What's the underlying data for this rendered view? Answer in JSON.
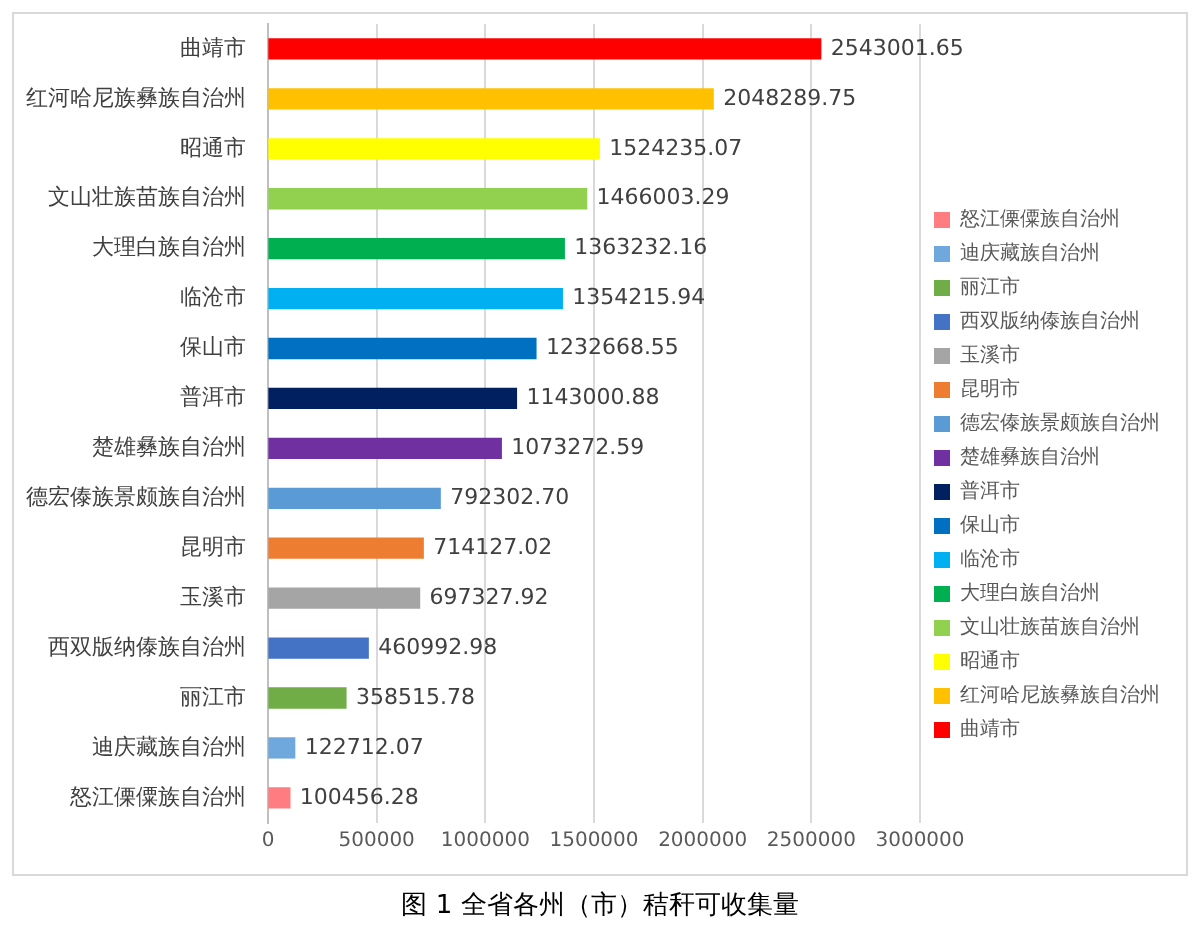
{
  "chart_data": {
    "type": "bar",
    "orientation": "horizontal",
    "stacked": true,
    "title": "图 1 全省各州（市）秸秆可收集量",
    "categories": [
      "曲靖市",
      "红河哈尼族彝族自治州",
      "昭通市",
      "文山壮族苗族自治州",
      "大理白族自治州",
      "临沧市",
      "保山市",
      "普洱市",
      "楚雄彝族自治州",
      "德宏傣族景颇族自治州",
      "昆明市",
      "玉溪市",
      "西双版纳傣族自治州",
      "丽江市",
      "迪庆藏族自治州",
      "怒江傈僳族自治州"
    ],
    "series": [
      {
        "name": "怒江傈僳族自治州",
        "color": "#ff7c80",
        "values": [
          null,
          null,
          null,
          null,
          null,
          null,
          null,
          null,
          null,
          null,
          null,
          null,
          null,
          null,
          null,
          100456.28
        ],
        "value_labels": [
          null,
          null,
          null,
          null,
          null,
          null,
          null,
          null,
          null,
          null,
          null,
          null,
          null,
          null,
          null,
          "100456.28"
        ]
      },
      {
        "name": "迪庆藏族自治州",
        "color": "#6fa8dc",
        "values": [
          null,
          null,
          null,
          null,
          null,
          null,
          null,
          null,
          null,
          null,
          null,
          null,
          null,
          null,
          122712.07,
          null
        ],
        "value_labels": [
          null,
          null,
          null,
          null,
          null,
          null,
          null,
          null,
          null,
          null,
          null,
          null,
          null,
          null,
          "122712.07",
          null
        ]
      },
      {
        "name": "丽江市",
        "color": "#70ad47",
        "values": [
          null,
          null,
          null,
          null,
          null,
          null,
          null,
          null,
          null,
          null,
          null,
          null,
          null,
          358515.78,
          null,
          null
        ],
        "value_labels": [
          null,
          null,
          null,
          null,
          null,
          null,
          null,
          null,
          null,
          null,
          null,
          null,
          null,
          "358515.78",
          null,
          null
        ]
      },
      {
        "name": "西双版纳傣族自治州",
        "color": "#4472c4",
        "values": [
          null,
          null,
          null,
          null,
          null,
          null,
          null,
          null,
          null,
          null,
          null,
          null,
          460992.98,
          null,
          null,
          null
        ],
        "value_labels": [
          null,
          null,
          null,
          null,
          null,
          null,
          null,
          null,
          null,
          null,
          null,
          null,
          "460992.98",
          null,
          null,
          null
        ]
      },
      {
        "name": "玉溪市",
        "color": "#a5a5a5",
        "values": [
          null,
          null,
          null,
          null,
          null,
          null,
          null,
          null,
          null,
          null,
          null,
          697327.92,
          null,
          null,
          null,
          null
        ],
        "value_labels": [
          null,
          null,
          null,
          null,
          null,
          null,
          null,
          null,
          null,
          null,
          null,
          "697327.92",
          null,
          null,
          null,
          null
        ]
      },
      {
        "name": "昆明市",
        "color": "#ed7d31",
        "values": [
          null,
          null,
          null,
          null,
          null,
          null,
          null,
          null,
          null,
          null,
          714127.02,
          null,
          null,
          null,
          null,
          null
        ],
        "value_labels": [
          null,
          null,
          null,
          null,
          null,
          null,
          null,
          null,
          null,
          null,
          "714127.02",
          null,
          null,
          null,
          null,
          null
        ]
      },
      {
        "name": "德宏傣族景颇族自治州",
        "color": "#5b9bd5",
        "values": [
          null,
          null,
          null,
          null,
          null,
          null,
          null,
          null,
          null,
          792302.7,
          null,
          null,
          null,
          null,
          null,
          null
        ],
        "value_labels": [
          null,
          null,
          null,
          null,
          null,
          null,
          null,
          null,
          null,
          "792302.70",
          null,
          null,
          null,
          null,
          null,
          null
        ]
      },
      {
        "name": "楚雄彝族自治州",
        "color": "#7030a0",
        "values": [
          null,
          null,
          null,
          null,
          null,
          null,
          null,
          null,
          1073272.59,
          null,
          null,
          null,
          null,
          null,
          null,
          null
        ],
        "value_labels": [
          null,
          null,
          null,
          null,
          null,
          null,
          null,
          null,
          "1073272.59",
          null,
          null,
          null,
          null,
          null,
          null,
          null
        ]
      },
      {
        "name": "普洱市",
        "color": "#002060",
        "values": [
          null,
          null,
          null,
          null,
          null,
          null,
          null,
          1143000.88,
          null,
          null,
          null,
          null,
          null,
          null,
          null,
          null
        ],
        "value_labels": [
          null,
          null,
          null,
          null,
          null,
          null,
          null,
          "1143000.88",
          null,
          null,
          null,
          null,
          null,
          null,
          null,
          null
        ]
      },
      {
        "name": "保山市",
        "color": "#0070c0",
        "values": [
          null,
          null,
          null,
          null,
          null,
          null,
          1232668.55,
          null,
          null,
          null,
          null,
          null,
          null,
          null,
          null,
          null
        ],
        "value_labels": [
          null,
          null,
          null,
          null,
          null,
          null,
          "1232668.55",
          null,
          null,
          null,
          null,
          null,
          null,
          null,
          null,
          null
        ]
      },
      {
        "name": "临沧市",
        "color": "#00b0f0",
        "values": [
          null,
          null,
          null,
          null,
          null,
          1354215.94,
          null,
          null,
          null,
          null,
          null,
          null,
          null,
          null,
          null,
          null
        ],
        "value_labels": [
          null,
          null,
          null,
          null,
          null,
          "1354215.94",
          null,
          null,
          null,
          null,
          null,
          null,
          null,
          null,
          null,
          null
        ]
      },
      {
        "name": "大理白族自治州",
        "color": "#00b050",
        "values": [
          null,
          null,
          null,
          null,
          1363232.16,
          null,
          null,
          null,
          null,
          null,
          null,
          null,
          null,
          null,
          null,
          null
        ],
        "value_labels": [
          null,
          null,
          null,
          null,
          "1363232.16",
          null,
          null,
          null,
          null,
          null,
          null,
          null,
          null,
          null,
          null,
          null
        ]
      },
      {
        "name": "文山壮族苗族自治州",
        "color": "#92d050",
        "values": [
          null,
          null,
          null,
          1466003.29,
          null,
          null,
          null,
          null,
          null,
          null,
          null,
          null,
          null,
          null,
          null,
          null
        ],
        "value_labels": [
          null,
          null,
          null,
          "1466003.29",
          null,
          null,
          null,
          null,
          null,
          null,
          null,
          null,
          null,
          null,
          null,
          null
        ]
      },
      {
        "name": "昭通市",
        "color": "#ffff00",
        "values": [
          null,
          null,
          1524235.07,
          null,
          null,
          null,
          null,
          null,
          null,
          null,
          null,
          null,
          null,
          null,
          null,
          null
        ],
        "value_labels": [
          null,
          null,
          "1524235.07",
          null,
          null,
          null,
          null,
          null,
          null,
          null,
          null,
          null,
          null,
          null,
          null,
          null
        ]
      },
      {
        "name": "红河哈尼族彝族自治州",
        "color": "#ffc000",
        "values": [
          null,
          2048289.75,
          null,
          null,
          null,
          null,
          null,
          null,
          null,
          null,
          null,
          null,
          null,
          null,
          null,
          null
        ],
        "value_labels": [
          null,
          "2048289.75",
          null,
          null,
          null,
          null,
          null,
          null,
          null,
          null,
          null,
          null,
          null,
          null,
          null,
          null
        ]
      },
      {
        "name": "曲靖市",
        "color": "#ff0000",
        "values": [
          2543001.65,
          null,
          null,
          null,
          null,
          null,
          null,
          null,
          null,
          null,
          null,
          null,
          null,
          null,
          null,
          null
        ],
        "value_labels": [
          "2543001.65",
          null,
          null,
          null,
          null,
          null,
          null,
          null,
          null,
          null,
          null,
          null,
          null,
          null,
          null,
          null
        ]
      }
    ],
    "xlim": [
      0,
      3000000
    ],
    "xticks": [
      0,
      500000,
      1000000,
      1500000,
      2000000,
      2500000,
      3000000
    ],
    "grid": "x",
    "legend": "right"
  }
}
